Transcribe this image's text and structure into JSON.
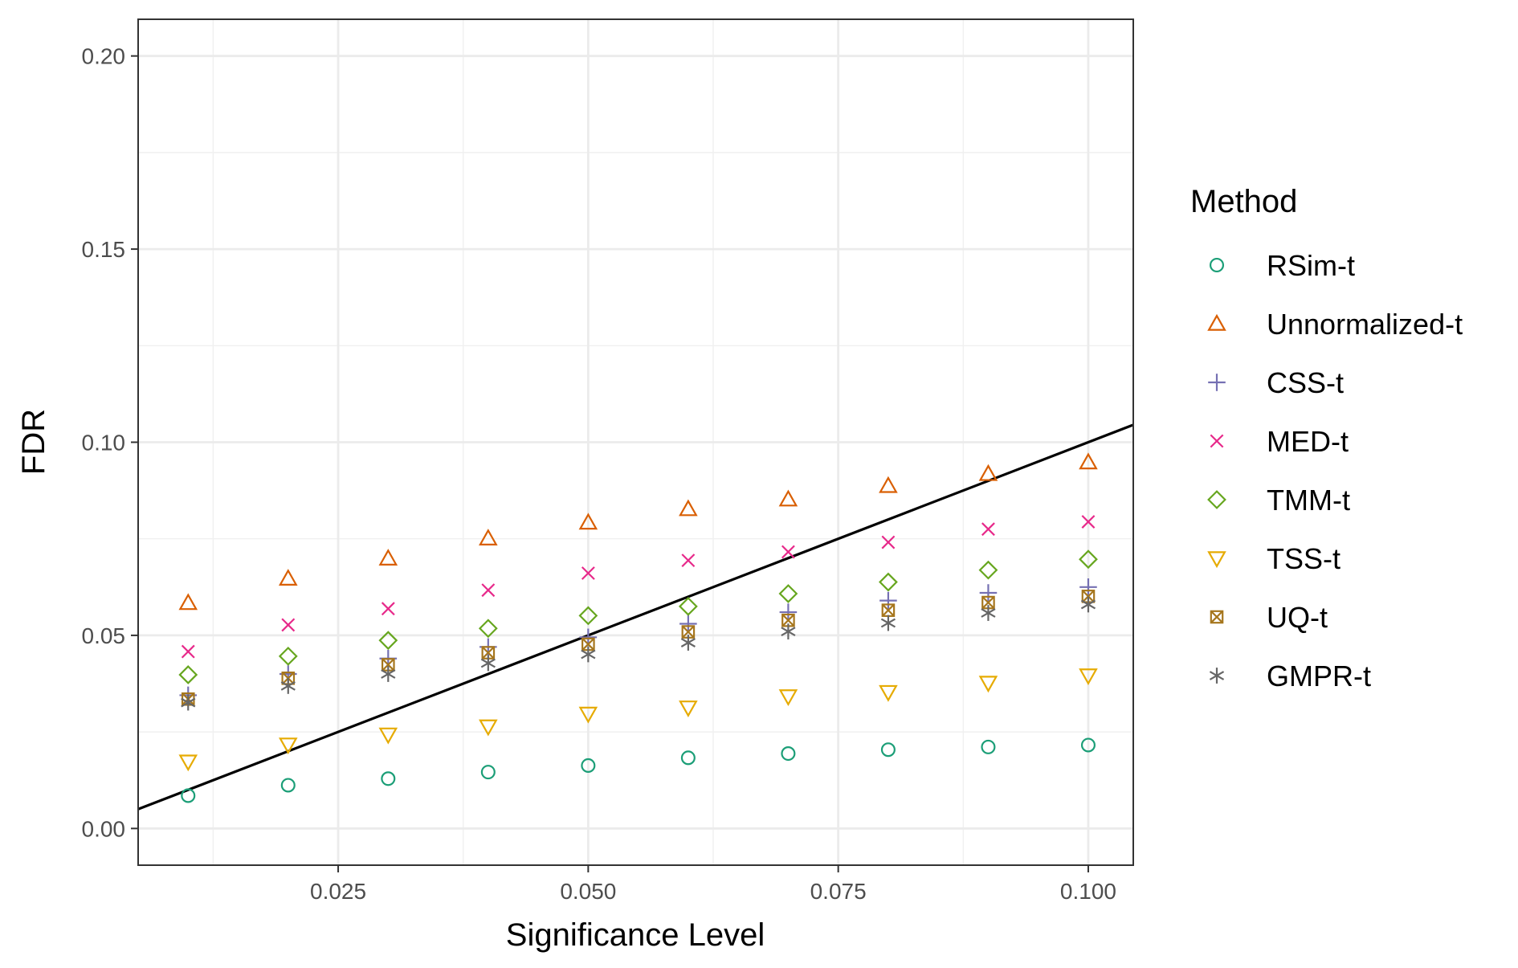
{
  "chart_data": {
    "type": "scatter",
    "title": "",
    "xlabel": "Significance Level",
    "ylabel": "FDR",
    "xlim": [
      0.005,
      0.1045
    ],
    "ylim": [
      -0.0095,
      0.2095
    ],
    "x_ticks": [
      0.025,
      0.05,
      0.075,
      0.1
    ],
    "x_tick_labels": [
      "0.025",
      "0.050",
      "0.075",
      "0.100"
    ],
    "y_ticks": [
      0.0,
      0.05,
      0.1,
      0.15,
      0.2
    ],
    "y_tick_labels": [
      "0.00",
      "0.05",
      "0.10",
      "0.15",
      "0.20"
    ],
    "grid": true,
    "legend_title": "Method",
    "legend_position": "right",
    "x": [
      0.01,
      0.02,
      0.03,
      0.04,
      0.05,
      0.06,
      0.07,
      0.08,
      0.09,
      0.1
    ],
    "series": [
      {
        "name": "RSim-t",
        "shape": "circle",
        "color": "#1b9e77",
        "values": [
          0.0085,
          0.0112,
          0.0129,
          0.0146,
          0.0163,
          0.0183,
          0.0194,
          0.0204,
          0.0211,
          0.0216
        ]
      },
      {
        "name": "Unnormalized-t",
        "shape": "triangle-up",
        "color": "#d95f02",
        "values": [
          0.0584,
          0.0647,
          0.0699,
          0.0751,
          0.0792,
          0.0827,
          0.0852,
          0.0887,
          0.0918,
          0.0948
        ]
      },
      {
        "name": "CSS-t",
        "shape": "plus",
        "color": "#7570b3",
        "values": [
          0.0345,
          0.04,
          0.044,
          0.047,
          0.0495,
          0.053,
          0.056,
          0.059,
          0.061,
          0.0625
        ]
      },
      {
        "name": "MED-t",
        "shape": "cross",
        "color": "#e7298a",
        "values": [
          0.0458,
          0.0527,
          0.0569,
          0.0617,
          0.0661,
          0.0694,
          0.0716,
          0.0741,
          0.0775,
          0.0794
        ]
      },
      {
        "name": "TMM-t",
        "shape": "diamond",
        "color": "#66a61e",
        "values": [
          0.0398,
          0.0446,
          0.0487,
          0.0518,
          0.0551,
          0.0575,
          0.0608,
          0.0638,
          0.0669,
          0.0697
        ]
      },
      {
        "name": "TSS-t",
        "shape": "triangle-down",
        "color": "#e6ab02",
        "values": [
          0.0173,
          0.0217,
          0.0243,
          0.0264,
          0.0297,
          0.0313,
          0.0342,
          0.0353,
          0.0377,
          0.0396
        ]
      },
      {
        "name": "UQ-t",
        "shape": "square-cross",
        "color": "#a6761d",
        "values": [
          0.0335,
          0.0389,
          0.0424,
          0.0455,
          0.0477,
          0.0509,
          0.0539,
          0.0565,
          0.0585,
          0.0601
        ]
      },
      {
        "name": "GMPR-t",
        "shape": "asterisk",
        "color": "#666666",
        "values": [
          0.0326,
          0.0369,
          0.04,
          0.0428,
          0.0451,
          0.0481,
          0.051,
          0.0532,
          0.0558,
          0.058
        ]
      }
    ],
    "reference_line": {
      "slope": 1,
      "intercept": 0,
      "color": "#000000"
    }
  }
}
